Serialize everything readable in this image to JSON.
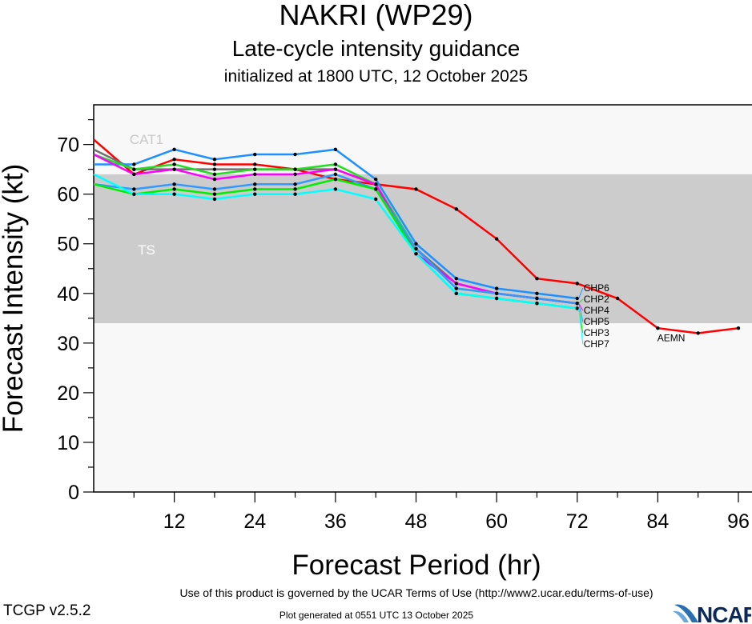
{
  "header": {
    "title": "NAKRI (WP29)",
    "subtitle": "Late-cycle intensity guidance",
    "initialized": "initialized at 1800 UTC, 12 October 2025"
  },
  "footer": {
    "terms": "Use of this product is governed by the UCAR Terms of Use (http://www2.ucar.edu/terms-of-use)",
    "generated": "Plot generated at 0551 UTC   13 October 2025",
    "version": "TCGP v2.5.2",
    "logo": "NCAR"
  },
  "chart_data": {
    "type": "line",
    "xlabel": "Forecast Period (hr)",
    "ylabel": "Forecast Intensity (kt)",
    "xlim": [
      0,
      96
    ],
    "ylim": [
      0,
      78
    ],
    "xticks": [
      12,
      24,
      36,
      48,
      60,
      72,
      84,
      96
    ],
    "yticks": [
      0,
      10,
      20,
      30,
      40,
      50,
      60,
      70
    ],
    "bands": [
      {
        "label": "CAT1",
        "from": 64,
        "to": 78,
        "color": "#f8f8f8",
        "label_color": "#c8c8c8"
      },
      {
        "label": "TS",
        "from": 34,
        "to": 64,
        "color": "#cccccc",
        "label_color": "#ffffff"
      },
      {
        "label": "",
        "from": 0,
        "to": 34,
        "color": "#f8f8f8"
      }
    ],
    "series": [
      {
        "name": "AEMN",
        "color": "#ff0000",
        "x": [
          0,
          6,
          12,
          18,
          24,
          30,
          36,
          42,
          48,
          54,
          60,
          66,
          72,
          78,
          84,
          90,
          96
        ],
        "y": [
          71,
          64,
          67,
          66,
          66,
          65,
          63,
          62,
          61,
          57,
          51,
          43,
          42,
          39,
          33,
          32,
          33
        ]
      },
      {
        "name": "",
        "color": "#707070",
        "x": [
          0,
          6,
          12,
          18,
          24,
          30,
          36,
          42,
          48,
          54,
          60,
          66,
          72
        ],
        "y": [
          69,
          65,
          65,
          65,
          65,
          65,
          65,
          62,
          49,
          42,
          40,
          39,
          38
        ]
      },
      {
        "name": "CHP6",
        "color": "#1e90ff",
        "x": [
          0,
          6,
          12,
          18,
          24,
          30,
          36,
          42,
          48,
          54,
          60,
          66,
          72
        ],
        "y": [
          66,
          66,
          69,
          67,
          68,
          68,
          69,
          63,
          50,
          43,
          41,
          40,
          39
        ]
      },
      {
        "name": "CHP2",
        "color": "#22dd22",
        "x": [
          0,
          6,
          12,
          18,
          24,
          30,
          36,
          42,
          48,
          54,
          60,
          66,
          72
        ],
        "y": [
          68,
          65,
          66,
          64,
          65,
          65,
          66,
          62,
          49,
          41,
          40,
          39,
          38
        ]
      },
      {
        "name": "CHP4",
        "color": "#ff00ff",
        "x": [
          0,
          6,
          12,
          18,
          24,
          30,
          36,
          42,
          48,
          54,
          60,
          66,
          72
        ],
        "y": [
          68,
          64,
          65,
          63,
          64,
          64,
          65,
          62,
          48,
          42,
          40,
          39,
          38
        ]
      },
      {
        "name": "CHP5",
        "color": "#3399ff",
        "x": [
          0,
          6,
          12,
          18,
          24,
          30,
          36,
          42,
          48,
          54,
          60,
          66,
          72
        ],
        "y": [
          62,
          61,
          62,
          61,
          62,
          62,
          64,
          61,
          49,
          41,
          40,
          39,
          38
        ]
      },
      {
        "name": "CHP3",
        "color": "#00ee00",
        "x": [
          0,
          6,
          12,
          18,
          24,
          30,
          36,
          42,
          48,
          54,
          60,
          66,
          72
        ],
        "y": [
          62,
          60,
          61,
          60,
          61,
          61,
          63,
          61,
          48,
          40,
          39,
          38,
          37
        ]
      },
      {
        "name": "CHP7",
        "color": "#00ffff",
        "x": [
          0,
          6,
          12,
          18,
          24,
          30,
          36,
          42,
          48,
          54,
          60,
          66,
          72
        ],
        "y": [
          64,
          60,
          60,
          59,
          60,
          60,
          61,
          59,
          48,
          40,
          39,
          38,
          37
        ]
      }
    ]
  }
}
